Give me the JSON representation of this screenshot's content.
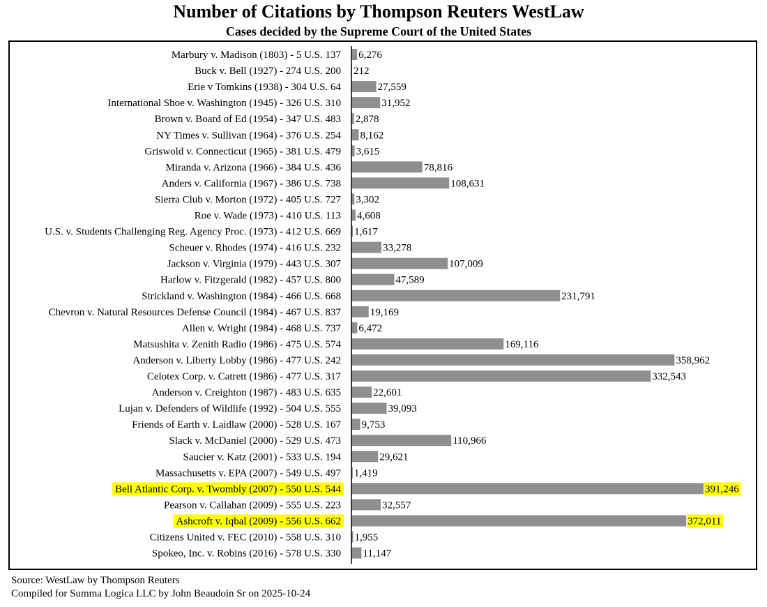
{
  "chart_data": {
    "type": "bar",
    "orientation": "horizontal",
    "title": "Number of Citations by Thompson Reuters WestLaw",
    "subtitle": "Cases decided by the Supreme Court of the United States",
    "categories": [
      "Marbury v. Madison (1803) - 5 U.S. 137",
      "Buck v. Bell (1927) - 274 U.S. 200",
      "Erie v Tomkins (1938) - 304 U.S. 64",
      "International Shoe v. Washington (1945) - 326 U.S. 310",
      "Brown v. Board of Ed (1954) - 347 U.S. 483",
      "NY Times v. Sullivan (1964) - 376 U.S. 254",
      "Griswold v. Connecticut (1965) - 381 U.S. 479",
      "Miranda v. Arizona (1966) - 384 U.S. 436",
      "Anders v. California (1967) - 386 U.S. 738",
      "Sierra Club v. Morton (1972) - 405 U.S. 727",
      "Roe v. Wade (1973) - 410 U.S. 113",
      "U.S. v. Students Challenging Reg. Agency Proc. (1973) - 412 U.S. 669",
      "Scheuer v. Rhodes (1974) - 416 U.S. 232",
      "Jackson v. Virginia (1979) - 443 U.S. 307",
      "Harlow v. Fitzgerald (1982) - 457 U.S. 800",
      "Strickland v. Washington (1984) - 466 U.S. 668",
      "Chevron v. Natural Resources Defense Council (1984) - 467 U.S. 837",
      "Allen v. Wright (1984) - 468 U.S. 737",
      "Matsushita v. Zenith Radio (1986) - 475 U.S. 574",
      "Anderson v. Liberty Lobby (1986) - 477 U.S. 242",
      "Celotex Corp. v. Catrett (1986) - 477 U.S. 317",
      "Anderson v. Creighton (1987) - 483 U.S. 635",
      "Lujan v. Defenders of Wildlife (1992) - 504 U.S. 555",
      "Friends of Earth v. Laidlaw (2000) - 528 U.S. 167",
      "Slack v. McDaniel (2000) - 529 U.S. 473",
      "Saucier v. Katz (2001) - 533 U.S. 194",
      "Massachusetts v. EPA (2007) - 549 U.S. 497",
      "Bell Atlantic Corp. v. Twombly (2007) - 550 U.S. 544",
      "Pearson v. Callahan (2009) - 555 U.S. 223",
      "Ashcroft v. Iqbal (2009) - 556 U.S. 662",
      "Citizens United v. FEC (2010) - 558 U.S. 310",
      "Spokeo, Inc. v. Robins (2016) - 578 U.S. 330"
    ],
    "values": [
      6276,
      212,
      27559,
      31952,
      2878,
      8162,
      3615,
      78816,
      108631,
      3302,
      4608,
      1617,
      33278,
      107009,
      47589,
      231791,
      19169,
      6472,
      169116,
      358962,
      332543,
      22601,
      39093,
      9753,
      110966,
      29621,
      1419,
      391246,
      32557,
      372011,
      1955,
      11147
    ],
    "value_labels": [
      "6,276",
      "212",
      "27,559",
      "31,952",
      "2,878",
      "8,162",
      "3,615",
      "78,816",
      "108,631",
      "3,302",
      "4,608",
      "1,617",
      "33,278",
      "107,009",
      "47,589",
      "231,791",
      "19,169",
      "6,472",
      "169,116",
      "358,962",
      "332,543",
      "22,601",
      "39,093",
      "9,753",
      "110,966",
      "29,621",
      "1,419",
      "391,246",
      "32,557",
      "372,011",
      "1,955",
      "11,147"
    ],
    "highlighted": [
      "Bell Atlantic Corp. v. Twombly (2007) - 550 U.S. 544",
      "Ashcroft v. Iqbal (2009) - 556 U.S. 662"
    ],
    "xlim": [
      0,
      400000
    ],
    "grid": false,
    "legend": "none",
    "colors": {
      "bar": "#8f8f8f",
      "highlight": "#ffff00",
      "axis": "#000000",
      "text": "#000000"
    }
  },
  "footer": {
    "source": "Source: WestLaw by Thompson Reuters",
    "compiled": "Compiled for Summa Logica LLC by John Beaudoin Sr on 2025-10-24"
  }
}
